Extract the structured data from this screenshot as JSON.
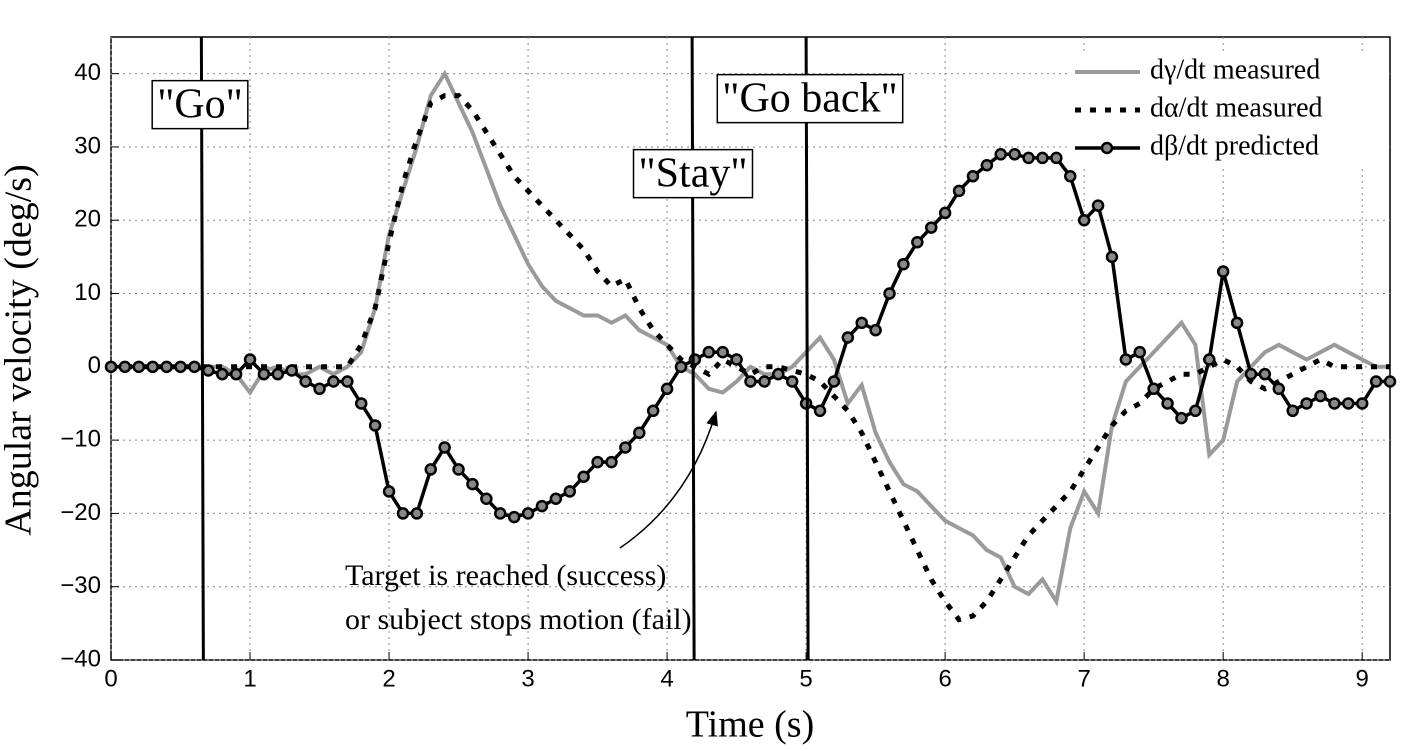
{
  "chart_data": {
    "type": "line",
    "xlabel": "Time (s)",
    "ylabel": "Angular velocity (deg/s)",
    "xlim": [
      0,
      9.2
    ],
    "ylim": [
      -40,
      45
    ],
    "xticks": [
      0,
      1,
      2,
      3,
      4,
      5,
      6,
      7,
      8,
      9
    ],
    "yticks": [
      {
        "value": -40,
        "label": "−40"
      },
      {
        "value": -30,
        "label": "−30"
      },
      {
        "value": -20,
        "label": "−20"
      },
      {
        "value": -10,
        "label": "−10"
      },
      0,
      10,
      20,
      30,
      40
    ],
    "grid": true,
    "legend": "upper right",
    "x": [
      0,
      0.1,
      0.2,
      0.3,
      0.4,
      0.5,
      0.6,
      0.7,
      0.8,
      0.9,
      1,
      1.1,
      1.2,
      1.3,
      1.4,
      1.5,
      1.6,
      1.7,
      1.8,
      1.9,
      2,
      2.1,
      2.2,
      2.3,
      2.4,
      2.5,
      2.6,
      2.7,
      2.8,
      2.9,
      3,
      3.1,
      3.2,
      3.3,
      3.4,
      3.5,
      3.6,
      3.7,
      3.8,
      3.9,
      4,
      4.1,
      4.2,
      4.3,
      4.4,
      4.5,
      4.6,
      4.7,
      4.8,
      4.9,
      5,
      5.1,
      5.2,
      5.3,
      5.4,
      5.5,
      5.6,
      5.7,
      5.8,
      5.9,
      6,
      6.1,
      6.2,
      6.3,
      6.4,
      6.5,
      6.6,
      6.7,
      6.8,
      6.9,
      7,
      7.1,
      7.2,
      7.3,
      7.4,
      7.5,
      7.6,
      7.7,
      7.8,
      7.9,
      8,
      8.1,
      8.2,
      8.3,
      8.4,
      8.5,
      8.6,
      8.7,
      8.8,
      8.9,
      9,
      9.1,
      9.2
    ],
    "series": [
      {
        "name": "dγ/dt measured",
        "color": "#9a9a9a",
        "style": "solid",
        "values": [
          0,
          0,
          0,
          0,
          0,
          0,
          0,
          0,
          0,
          -1,
          -3.5,
          -0.5,
          0,
          -1,
          -1,
          0,
          -1,
          0,
          2,
          8,
          18,
          24,
          30,
          37,
          40,
          36,
          32,
          27,
          22,
          18,
          14,
          11,
          9,
          8,
          7,
          7,
          6,
          7,
          5,
          4,
          3,
          0,
          -1,
          -3,
          -3.5,
          -2,
          0,
          -1,
          -1,
          0,
          2,
          4,
          1,
          -5,
          -2.5,
          -9,
          -13,
          -16,
          -17,
          -19,
          -21,
          -22,
          -23,
          -25,
          -26,
          -30,
          -31,
          -29,
          -32,
          -22,
          -17,
          -20,
          -8,
          -2,
          0,
          2,
          4,
          6,
          3,
          -12,
          -10,
          -2,
          0,
          2,
          3,
          2,
          1,
          2,
          3,
          2,
          1,
          0,
          0
        ]
      },
      {
        "name": "dα/dt measured",
        "color": "#000000",
        "style": "dotted",
        "values": [
          0,
          0,
          0,
          0,
          0,
          0,
          0,
          0,
          0,
          0,
          0,
          0,
          0,
          0,
          0,
          0,
          0,
          0,
          3,
          8,
          17,
          25,
          31,
          36,
          37,
          37,
          35,
          32,
          29,
          26,
          24,
          22,
          20,
          18,
          16,
          13,
          11,
          12,
          8,
          5,
          3,
          1,
          0,
          -1,
          1,
          0,
          -1,
          0,
          0,
          -0.5,
          -1,
          -2,
          -4,
          -6,
          -9,
          -13,
          -17,
          -21,
          -25,
          -29,
          -32,
          -34.5,
          -34,
          -32,
          -29,
          -26,
          -23,
          -21,
          -19,
          -17,
          -14,
          -11,
          -8,
          -6,
          -5,
          -3,
          -2,
          -1,
          -1,
          0,
          1,
          0,
          -2,
          -3,
          -2,
          -1,
          0,
          1,
          0,
          0,
          0,
          0,
          0
        ]
      },
      {
        "name": "dβ/dt predicted",
        "color": "#000000",
        "style": "marker",
        "values": [
          0,
          0,
          0,
          0,
          0,
          0,
          0,
          -0.5,
          -1,
          -1,
          1,
          -1,
          -1,
          -0.5,
          -2,
          -3,
          -2,
          -2,
          -5,
          -8,
          -17,
          -20,
          -20,
          -14,
          -11,
          -14,
          -16,
          -18,
          -20,
          -20.5,
          -20,
          -19,
          -18,
          -17,
          -15,
          -13,
          -13,
          -11,
          -9,
          -6,
          -3,
          0,
          1,
          2,
          2,
          1,
          -2,
          -2,
          -1,
          -2,
          -5,
          -6,
          -2,
          4,
          6,
          5,
          10,
          14,
          17,
          19,
          21,
          24,
          26,
          27.5,
          29,
          29,
          28.5,
          28.5,
          28.5,
          26,
          20,
          22,
          15,
          1,
          2,
          -3,
          -5,
          -7,
          -6,
          1,
          13,
          6,
          -1,
          -1,
          -3,
          -6,
          -5,
          -4,
          -5,
          -5,
          -5,
          -2,
          -2
        ]
      }
    ],
    "vlines": [
      0.65,
      4.18,
      5.0
    ],
    "event_labels": [
      "\"Go\"",
      "\"Stay\"",
      "\"Go back\""
    ],
    "annotation": [
      "Target is reached (success)",
      "or subject stops motion (fail)"
    ]
  }
}
